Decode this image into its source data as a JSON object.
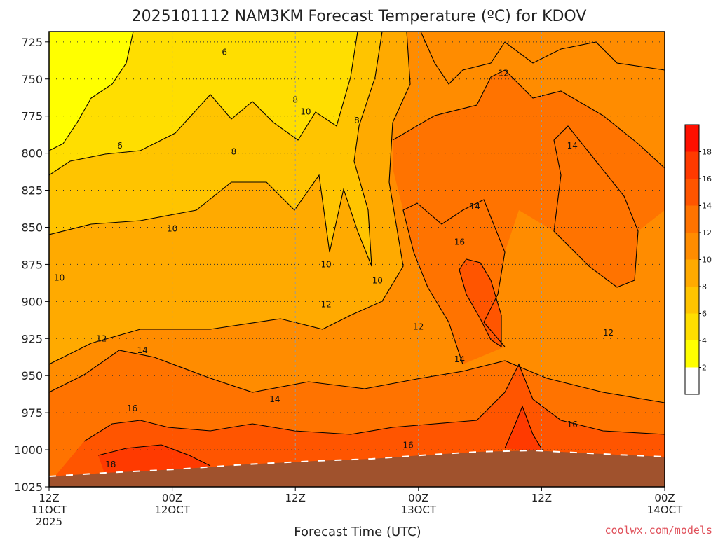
{
  "title": "2025101112 NAM3KM Forecast Temperature (ºC) for KDOV",
  "xlabel": "Forecast Time (UTC)",
  "credit": "coolwx.com/models",
  "chart_data": {
    "type": "contour",
    "ylim": [
      1025,
      718
    ],
    "y_ticks": [
      725,
      750,
      775,
      800,
      825,
      850,
      875,
      900,
      925,
      950,
      975,
      1000,
      1025
    ],
    "y_tick_labels": [
      "725",
      "750",
      "775",
      "800",
      "825",
      "850",
      "875",
      "900",
      "925",
      "950",
      "975",
      "1000",
      "1025"
    ],
    "x_ticks": [
      {
        "hour": 0,
        "line1": "12Z",
        "line2": "11OCT",
        "line3": "2025"
      },
      {
        "hour": 12,
        "line1": "00Z",
        "line2": "12OCT",
        "line3": ""
      },
      {
        "hour": 24,
        "line1": "12Z",
        "line2": "",
        "line3": ""
      },
      {
        "hour": 36,
        "line1": "00Z",
        "line2": "13OCT",
        "line3": ""
      },
      {
        "hour": 48,
        "line1": "12Z",
        "line2": "",
        "line3": ""
      },
      {
        "hour": 60,
        "line1": "00Z",
        "line2": "14OCT",
        "line3": ""
      }
    ],
    "xlim": [
      0,
      60
    ],
    "grid": true,
    "colorbar": {
      "levels": [
        "2",
        "4",
        "6",
        "8",
        "10",
        "12",
        "14",
        "16",
        "18"
      ],
      "colors": [
        "#ffffff",
        "#ffff00",
        "#ffde00",
        "#ffc400",
        "#ffaa00",
        "#ff8c00",
        "#ff7300",
        "#ff5500",
        "#ff3a00",
        "#ff1000"
      ]
    },
    "contour_labels": [
      {
        "text": "6",
        "t": 17.1,
        "p": 732
      },
      {
        "text": "6",
        "t": 6.9,
        "p": 795
      },
      {
        "text": "8",
        "t": 24.0,
        "p": 764
      },
      {
        "text": "8",
        "t": 30.0,
        "p": 778
      },
      {
        "text": "8",
        "t": 18.0,
        "p": 799
      },
      {
        "text": "10",
        "t": 25.0,
        "p": 772
      },
      {
        "text": "10",
        "t": 12.0,
        "p": 851
      },
      {
        "text": "10",
        "t": 1.0,
        "p": 884
      },
      {
        "text": "10",
        "t": 27.0,
        "p": 875
      },
      {
        "text": "10",
        "t": 32.0,
        "p": 886
      },
      {
        "text": "12",
        "t": 44.3,
        "p": 746
      },
      {
        "text": "12",
        "t": 27.0,
        "p": 902
      },
      {
        "text": "12",
        "t": 36.0,
        "p": 917
      },
      {
        "text": "12",
        "t": 5.1,
        "p": 925
      },
      {
        "text": "12",
        "t": 54.5,
        "p": 921
      },
      {
        "text": "14",
        "t": 51.0,
        "p": 795
      },
      {
        "text": "14",
        "t": 41.5,
        "p": 836
      },
      {
        "text": "14",
        "t": 9.1,
        "p": 933
      },
      {
        "text": "14",
        "t": 40.0,
        "p": 939
      },
      {
        "text": "14",
        "t": 22.0,
        "p": 966
      },
      {
        "text": "16",
        "t": 40.0,
        "p": 860
      },
      {
        "text": "16",
        "t": 8.1,
        "p": 972
      },
      {
        "text": "16",
        "t": 51.0,
        "p": 983
      },
      {
        "text": "16",
        "t": 35.0,
        "p": 997
      },
      {
        "text": "18",
        "t": 6.0,
        "p": 1010
      }
    ]
  }
}
